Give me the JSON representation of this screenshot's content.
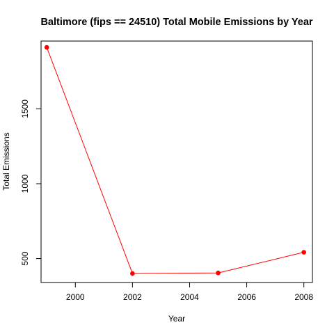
{
  "chart_data": {
    "type": "line",
    "title": "Baltimore (fips == 24510) Total Mobile Emissions by Year",
    "xlabel": "Year",
    "ylabel": "Total Emissions",
    "x": [
      1999,
      2002,
      2005,
      2008
    ],
    "series": [
      {
        "values": [
          1911,
          400,
          404,
          542
        ]
      }
    ],
    "xlim": [
      1998.8,
      2008.3
    ],
    "ylim": [
      340,
      1953
    ],
    "xticks": [
      2000,
      2002,
      2004,
      2006,
      2008
    ],
    "yticks": [
      500,
      1000,
      1500
    ],
    "xtick_labels": [
      "2000",
      "2002",
      "2004",
      "2006",
      "2008"
    ],
    "ytick_labels": [
      "500",
      "1000",
      "1500"
    ],
    "line_color": "#ff0000",
    "point_color": "#ff0000",
    "grid": false,
    "legend": "none"
  }
}
